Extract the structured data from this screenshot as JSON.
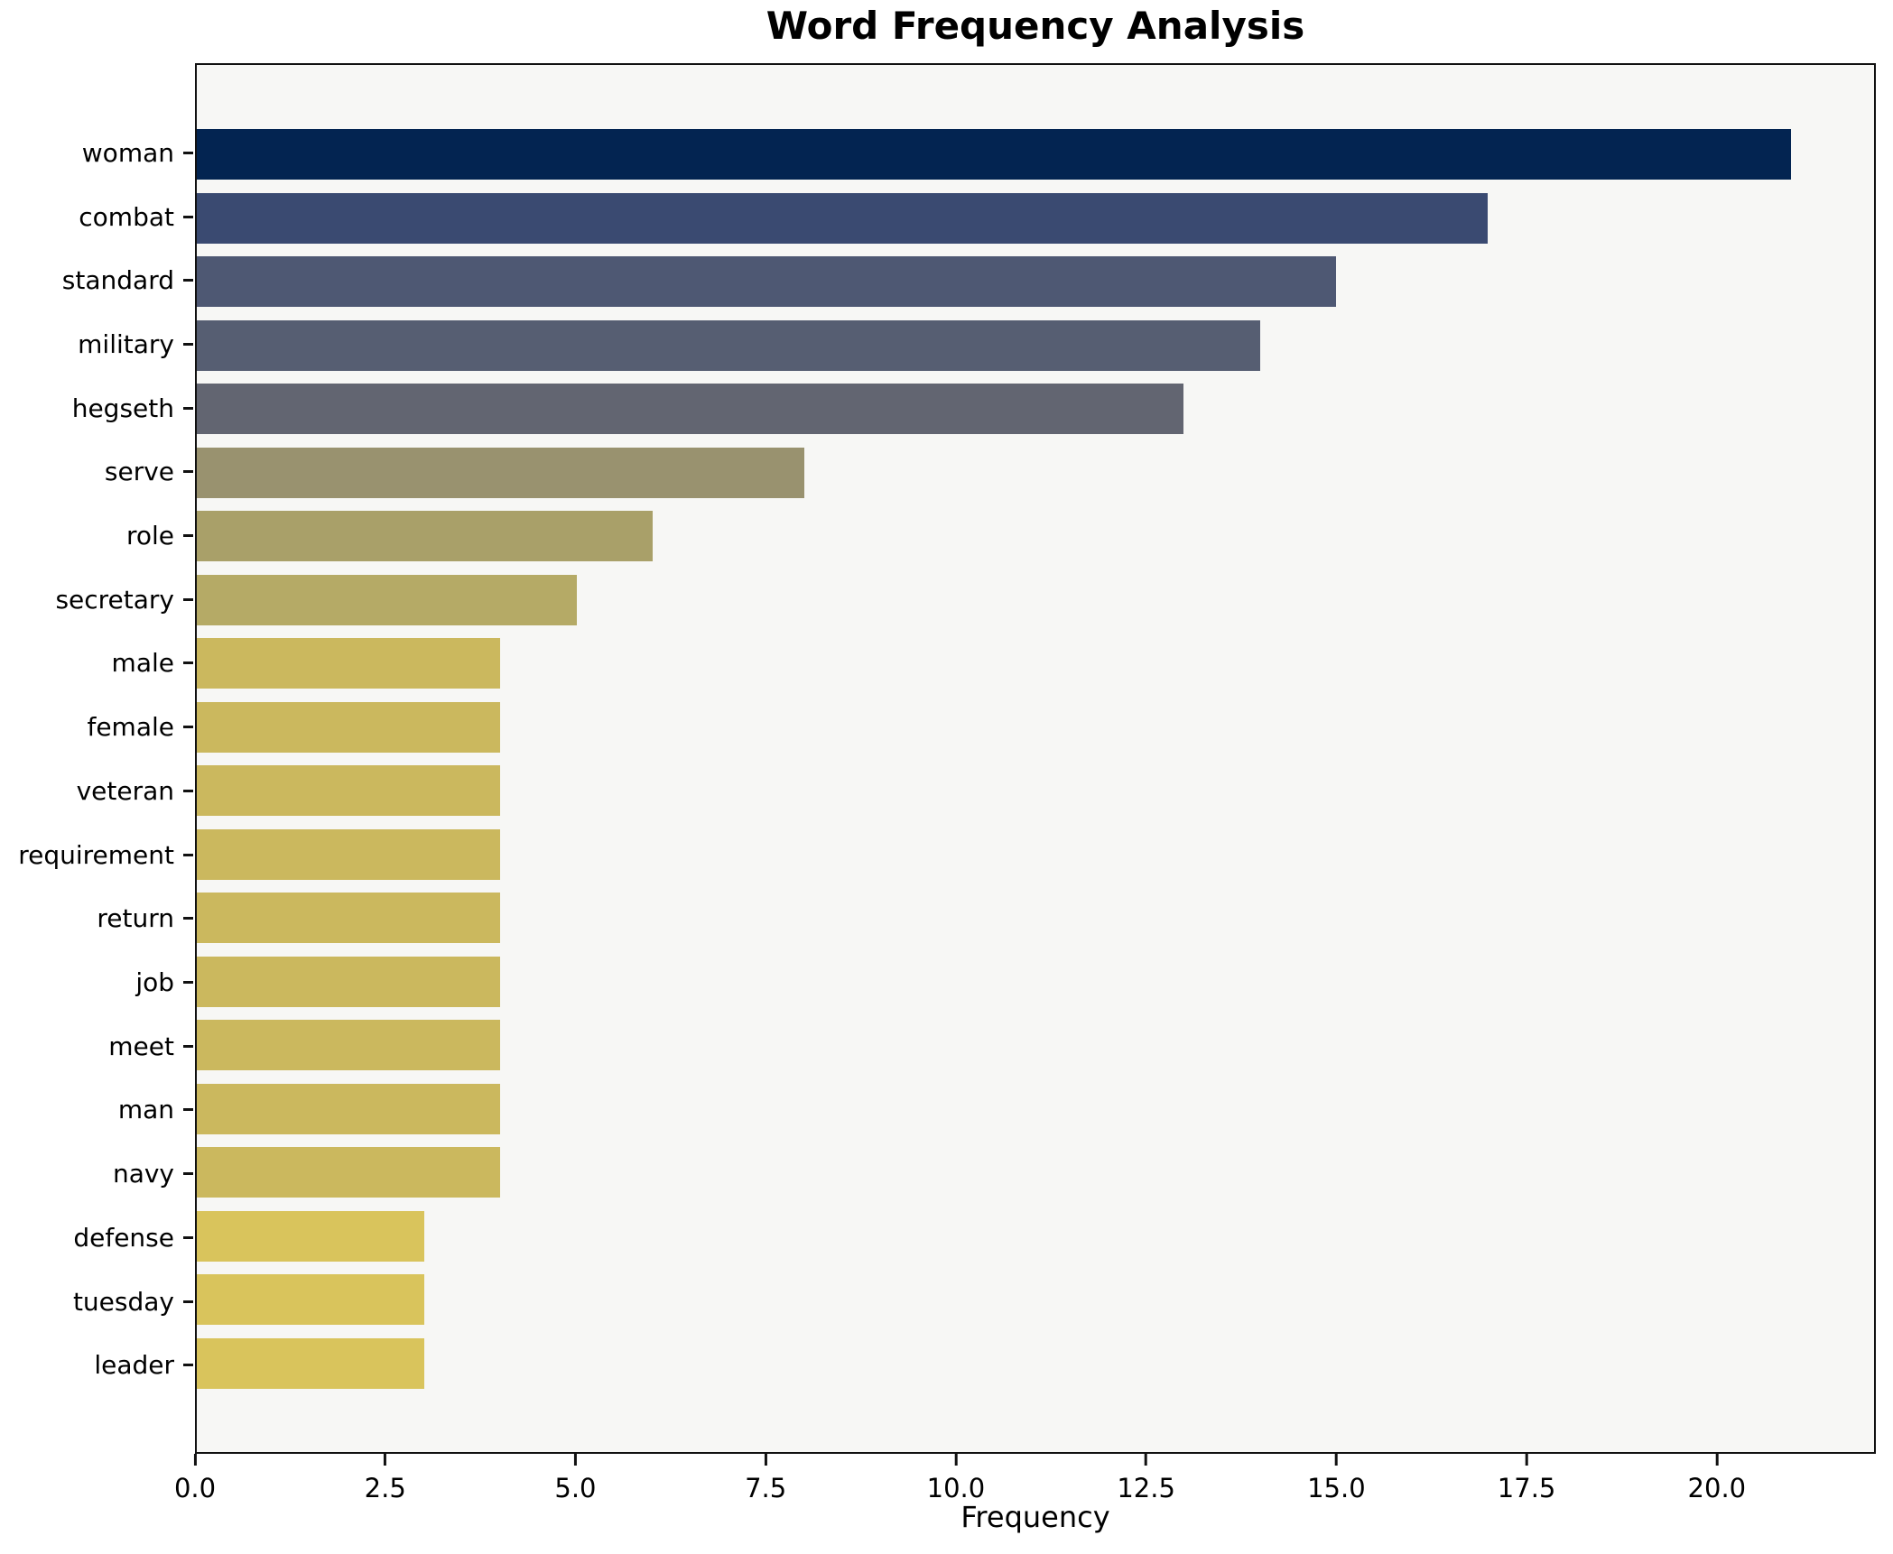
{
  "chart_data": {
    "type": "bar",
    "orientation": "horizontal",
    "title": "Word Frequency Analysis",
    "xlabel": "Frequency",
    "ylabel": "",
    "xlim": [
      0,
      22.09
    ],
    "xticks": [
      {
        "value": 0,
        "label": "0.0"
      },
      {
        "value": 2.5,
        "label": "2.5"
      },
      {
        "value": 5,
        "label": "5.0"
      },
      {
        "value": 7.5,
        "label": "7.5"
      },
      {
        "value": 10,
        "label": "10.0"
      },
      {
        "value": 12.5,
        "label": "12.5"
      },
      {
        "value": 15,
        "label": "15.0"
      },
      {
        "value": 17.5,
        "label": "17.5"
      },
      {
        "value": 20,
        "label": "20.0"
      }
    ],
    "grid": false,
    "legend": false,
    "colors": {
      "figure_background": "#ffffff",
      "plot_background": "#f7f7f5",
      "spine": "#111111"
    },
    "categories": [
      "woman",
      "combat",
      "standard",
      "military",
      "hegseth",
      "serve",
      "role",
      "secretary",
      "male",
      "female",
      "veteran",
      "requirement",
      "return",
      "job",
      "meet",
      "man",
      "navy",
      "defense",
      "tuesday",
      "leader"
    ],
    "values": [
      21,
      17,
      15,
      14,
      13,
      8,
      6,
      5,
      4,
      4,
      4,
      4,
      4,
      4,
      4,
      4,
      4,
      3,
      3,
      3
    ],
    "series": [
      {
        "label": "woman",
        "value": 21,
        "color": "#032451"
      },
      {
        "label": "combat",
        "value": 17,
        "color": "#3a4a71"
      },
      {
        "label": "standard",
        "value": 15,
        "color": "#4e5873"
      },
      {
        "label": "military",
        "value": 14,
        "color": "#565e72"
      },
      {
        "label": "hegseth",
        "value": 13,
        "color": "#626571"
      },
      {
        "label": "serve",
        "value": 8,
        "color": "#99926f"
      },
      {
        "label": "role",
        "value": 6,
        "color": "#a9a069"
      },
      {
        "label": "secretary",
        "value": 5,
        "color": "#b5aa66"
      },
      {
        "label": "male",
        "value": 4,
        "color": "#cbb85e"
      },
      {
        "label": "female",
        "value": 4,
        "color": "#cbb85e"
      },
      {
        "label": "veteran",
        "value": 4,
        "color": "#cbb85e"
      },
      {
        "label": "requirement",
        "value": 4,
        "color": "#cbb85e"
      },
      {
        "label": "return",
        "value": 4,
        "color": "#cbb85e"
      },
      {
        "label": "job",
        "value": 4,
        "color": "#cbb85e"
      },
      {
        "label": "meet",
        "value": 4,
        "color": "#cbb85e"
      },
      {
        "label": "man",
        "value": 4,
        "color": "#cbb85e"
      },
      {
        "label": "navy",
        "value": 4,
        "color": "#cbb85e"
      },
      {
        "label": "defense",
        "value": 3,
        "color": "#d9c45c"
      },
      {
        "label": "tuesday",
        "value": 3,
        "color": "#d9c45c"
      },
      {
        "label": "leader",
        "value": 3,
        "color": "#d9c45c"
      }
    ]
  }
}
